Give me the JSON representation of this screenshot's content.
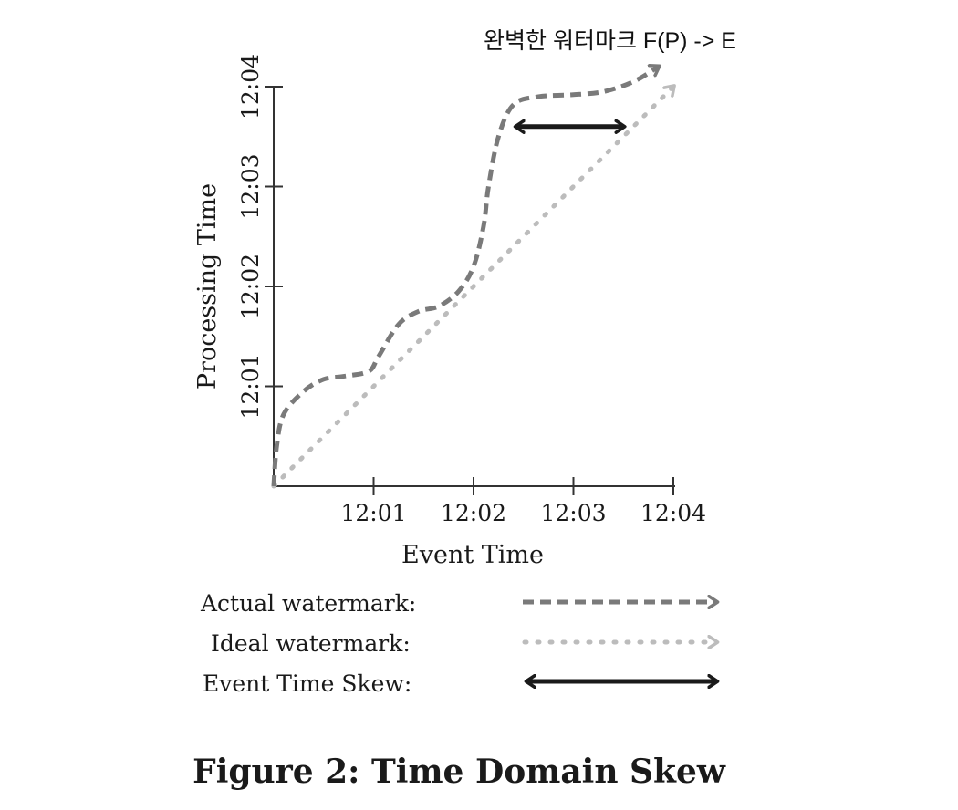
{
  "chart_data": {
    "type": "line",
    "caption": "Figure 2: Time Domain Skew",
    "annotation": "완벽한 워터마크 F(P) -> E",
    "xlabel": "Event Time",
    "ylabel": "Processing Time",
    "x_ticks": [
      "12:01",
      "12:02",
      "12:03",
      "12:04"
    ],
    "y_ticks": [
      "12:01",
      "12:02",
      "12:03",
      "12:04"
    ],
    "x_range_minutes": [
      0,
      4
    ],
    "y_range_minutes": [
      0,
      4
    ],
    "origin_time": "12:00",
    "series": [
      {
        "name": "Actual watermark:",
        "style": "dashed",
        "color": "#7a7a7a",
        "x": [
          0,
          0.03,
          0.1,
          0.3,
          0.5,
          0.7,
          0.95,
          1.05,
          1.25,
          1.45,
          1.65,
          1.85,
          2.0,
          2.1,
          2.15,
          2.25,
          2.4,
          2.65,
          3.0,
          3.3,
          3.6,
          3.85
        ],
        "y": [
          0,
          0.4,
          0.72,
          0.95,
          1.07,
          1.1,
          1.15,
          1.3,
          1.62,
          1.75,
          1.8,
          1.95,
          2.2,
          2.6,
          3.0,
          3.5,
          3.82,
          3.9,
          3.92,
          3.95,
          4.05,
          4.2
        ]
      },
      {
        "name": "Ideal watermark:",
        "style": "dotted",
        "color": "#bcbcbc",
        "x": [
          0,
          4.0
        ],
        "y": [
          0,
          4.0
        ]
      }
    ],
    "skew_arrow": {
      "name": "Event Time Skew:",
      "y": 3.6,
      "x_start": 2.43,
      "x_end": 3.5,
      "color": "#1a1a1a"
    }
  }
}
